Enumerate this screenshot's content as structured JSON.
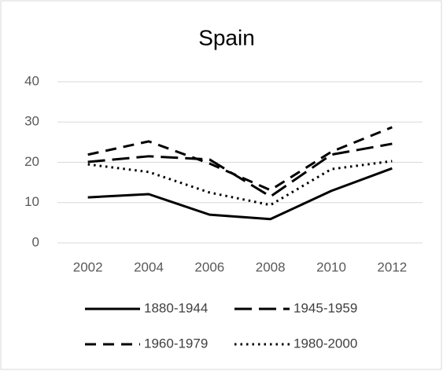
{
  "chart_data": {
    "type": "line",
    "title": "Spain",
    "categories": [
      "2002",
      "2004",
      "2006",
      "2008",
      "2010",
      "2012"
    ],
    "series": [
      {
        "name": "1880-1944",
        "color": "#000000",
        "dash": "solid",
        "values": [
          11.3,
          12.1,
          7.0,
          5.9,
          12.9,
          18.5
        ]
      },
      {
        "name": "1945-1959",
        "color": "#000000",
        "dash": "long-dash",
        "values": [
          20.1,
          21.5,
          20.7,
          11.5,
          21.9,
          24.6
        ]
      },
      {
        "name": "1960-1979",
        "color": "#000000",
        "dash": "dash",
        "values": [
          21.9,
          25.2,
          19.7,
          13.1,
          22.6,
          28.7
        ]
      },
      {
        "name": "1980-2000",
        "color": "#000000",
        "dash": "dot",
        "values": [
          19.5,
          17.6,
          12.5,
          9.4,
          18.3,
          20.3
        ]
      }
    ],
    "ylim": [
      0,
      40
    ],
    "yticks": [
      0,
      10,
      20,
      30,
      40
    ],
    "grid": true,
    "legend": "bottom"
  }
}
